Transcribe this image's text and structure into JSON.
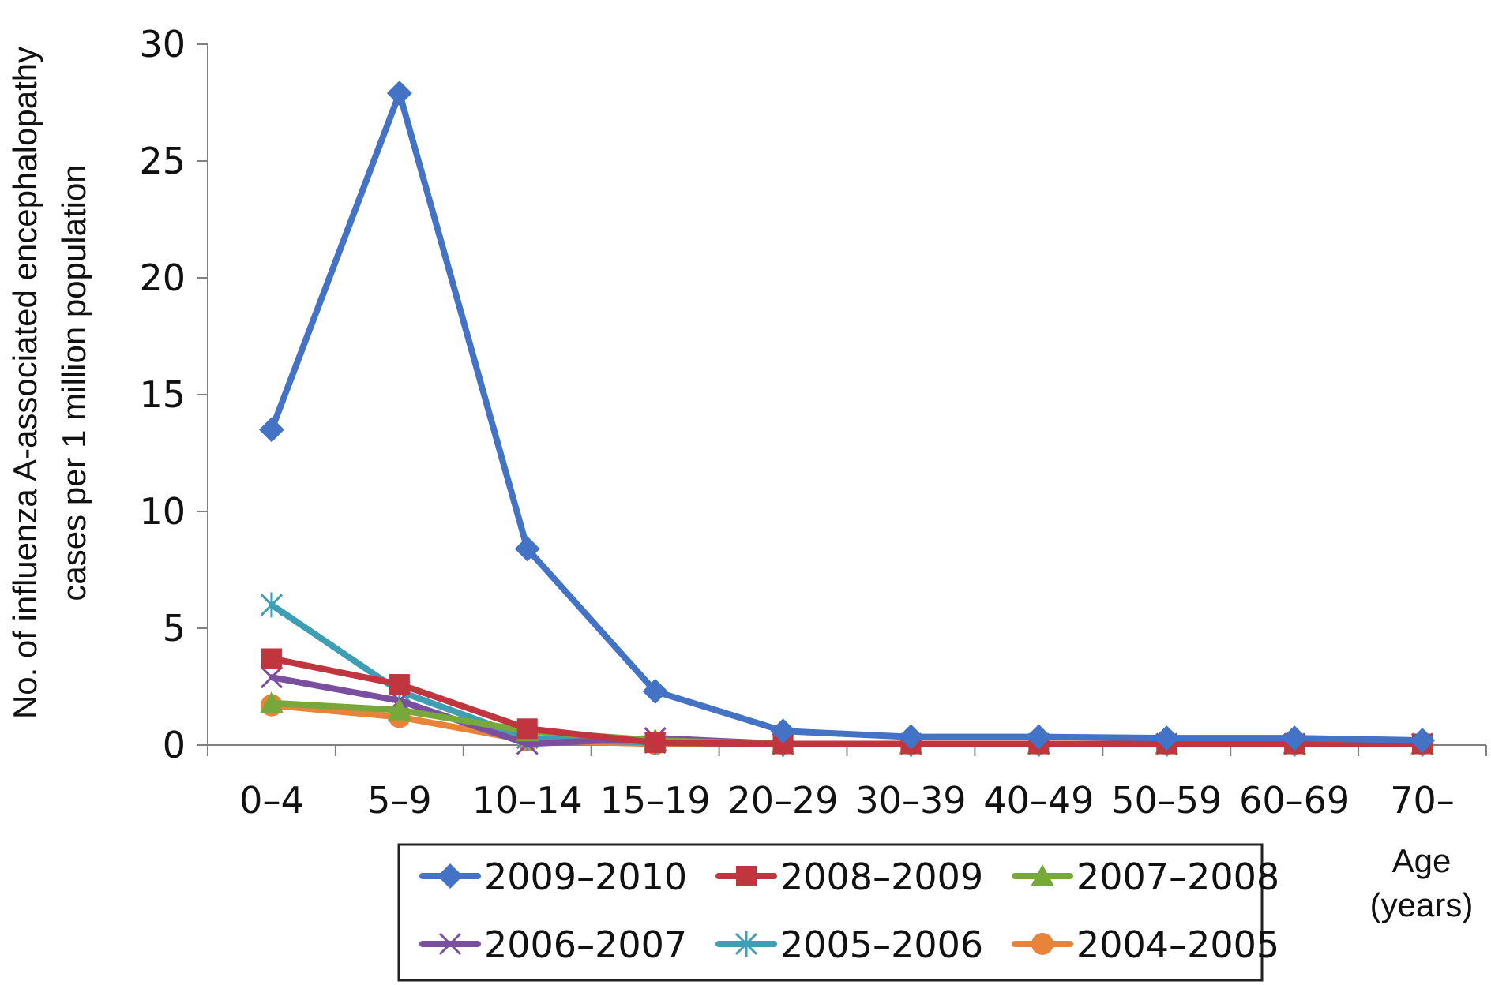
{
  "chart_data": {
    "type": "line",
    "title": "",
    "ylabel_lines": [
      "No. of influenza A-associated encephalopathy",
      "cases per 1 million population"
    ],
    "xlabel_lines": [
      "Age",
      "(years)"
    ],
    "categories": [
      "0–4",
      "5–9",
      "10–14",
      "15–19",
      "20–29",
      "30–39",
      "40–49",
      "50–59",
      "60–69",
      "70–"
    ],
    "ylim": [
      0,
      30
    ],
    "yticks": [
      0,
      5,
      10,
      15,
      20,
      25,
      30
    ],
    "grid": false,
    "legend_position": "bottom",
    "series": [
      {
        "name": "2009–2010",
        "color": "#4472C4",
        "marker": "diamond",
        "values": [
          13.5,
          27.9,
          8.4,
          2.3,
          0.6,
          0.35,
          0.35,
          0.3,
          0.3,
          0.2
        ]
      },
      {
        "name": "2008–2009",
        "color": "#C0353E",
        "marker": "square",
        "values": [
          3.7,
          2.6,
          0.7,
          0.1,
          0.05,
          0.05,
          0.05,
          0.05,
          0.05,
          0.05
        ]
      },
      {
        "name": "2007–2008",
        "color": "#77A83C",
        "marker": "triangle",
        "values": [
          1.8,
          1.5,
          0.6,
          0.2,
          0.05,
          0.05,
          0.05,
          0.05,
          0.05,
          0.05
        ]
      },
      {
        "name": "2006–2007",
        "color": "#7A4FA0",
        "marker": "x",
        "values": [
          2.9,
          1.9,
          0.05,
          0.3,
          0.05,
          0.05,
          0.05,
          0.05,
          0.05,
          0.05
        ]
      },
      {
        "name": "2005–2006",
        "color": "#3E9EB4",
        "marker": "star",
        "values": [
          6.0,
          2.3,
          0.3,
          0.1,
          0.05,
          0.05,
          0.05,
          0.05,
          0.05,
          0.05
        ]
      },
      {
        "name": "2004–2005",
        "color": "#E8833A",
        "marker": "circle",
        "values": [
          1.7,
          1.2,
          0.2,
          0.05,
          0.05,
          0.05,
          0.05,
          0.05,
          0.05,
          0.05
        ]
      }
    ]
  }
}
